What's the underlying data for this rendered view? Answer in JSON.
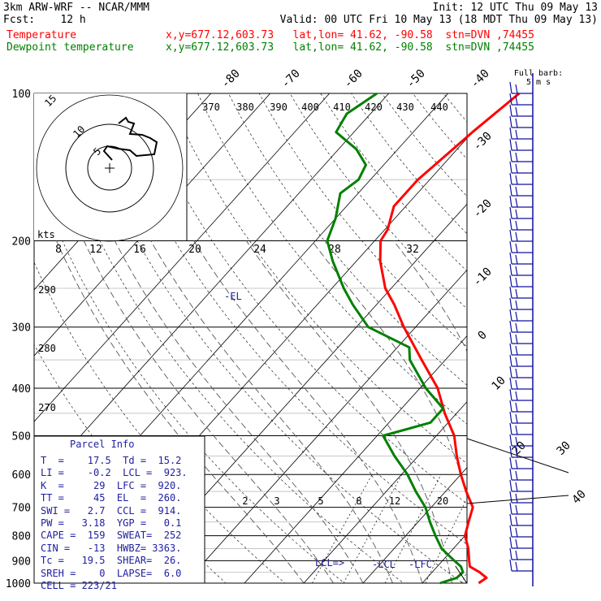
{
  "header": {
    "line1_left": "3km ARW-WRF -- NCAR/MMM",
    "line1_right": "Init: 12 UTC Thu 09 May 13",
    "line2_left": "Fcst:    12 h",
    "line2_right": "Valid: 00 UTC Fri 10 May 13 (18 MDT Thu 09 May 13)",
    "temp_label": "Temperature",
    "temp_info": "x,y=677.12,603.73   lat,lon= 41.62, -90.58  stn=DVN ,74455",
    "dew_label": "Dewpoint temperature",
    "dew_info": "x,y=677.12,603.73   lat,lon= 41.62, -90.58  stn=DVN ,74455"
  },
  "colors": {
    "temperature": "#ff0000",
    "dewpoint": "#008000",
    "parcel_text": "#2020a0",
    "wind": "#1010a0",
    "grid": "#000000"
  },
  "chart_data": {
    "type": "line",
    "diagram": "skew-T log-p",
    "pressure_levels": [
      100,
      200,
      300,
      400,
      500,
      600,
      700,
      800,
      900,
      1000
    ],
    "skewed_isotherm_labels": [
      -80,
      -70,
      -60,
      -50,
      -40,
      -30,
      -20,
      -10,
      0,
      10,
      20,
      30,
      40
    ],
    "potential_temp_labels": [
      370,
      380,
      390,
      400,
      410,
      420,
      430,
      440,
      290,
      280,
      270
    ],
    "mixing_ratio_labels": [
      2,
      3,
      5,
      8,
      12,
      20
    ],
    "hodograph": {
      "unit_label": "kts",
      "ring_labels": [
        5,
        10,
        15
      ],
      "speed_ticks": [
        8,
        12,
        16,
        20,
        24,
        28,
        32
      ]
    },
    "series": [
      {
        "name": "Temperature",
        "points": [
          [
            1000,
            19.5
          ],
          [
            975,
            20
          ],
          [
            950,
            18
          ],
          [
            925,
            15.5
          ],
          [
            900,
            14.5
          ],
          [
            850,
            12.5
          ],
          [
            800,
            10
          ],
          [
            750,
            8.5
          ],
          [
            700,
            7
          ],
          [
            650,
            3.5
          ],
          [
            600,
            0
          ],
          [
            550,
            -3.5
          ],
          [
            500,
            -7
          ],
          [
            450,
            -12
          ],
          [
            400,
            -17
          ],
          [
            350,
            -24
          ],
          [
            300,
            -32
          ],
          [
            270,
            -37
          ],
          [
            250,
            -41
          ],
          [
            220,
            -46
          ],
          [
            200,
            -49
          ],
          [
            190,
            -49.5
          ],
          [
            170,
            -52
          ],
          [
            150,
            -52
          ],
          [
            120,
            -50
          ],
          [
            100,
            -48
          ]
        ]
      },
      {
        "name": "Dewpoint temperature",
        "points": [
          [
            1000,
            13
          ],
          [
            975,
            15
          ],
          [
            950,
            15.2
          ],
          [
            925,
            14
          ],
          [
            900,
            12
          ],
          [
            850,
            8
          ],
          [
            800,
            5
          ],
          [
            750,
            2
          ],
          [
            700,
            -1
          ],
          [
            650,
            -5
          ],
          [
            600,
            -9
          ],
          [
            550,
            -14
          ],
          [
            500,
            -19
          ],
          [
            470,
            -13
          ],
          [
            440,
            -13
          ],
          [
            400,
            -19
          ],
          [
            350,
            -26
          ],
          [
            330,
            -28
          ],
          [
            300,
            -38
          ],
          [
            270,
            -44
          ],
          [
            250,
            -48
          ],
          [
            220,
            -54
          ],
          [
            200,
            -58
          ],
          [
            180,
            -60
          ],
          [
            160,
            -63
          ],
          [
            150,
            -62
          ],
          [
            140,
            -63
          ],
          [
            130,
            -67
          ],
          [
            120,
            -73
          ],
          [
            110,
            -74
          ],
          [
            100,
            -72
          ]
        ]
      }
    ],
    "annotations": [
      "-EL",
      "LCL=>",
      "-LCL",
      "-LFC"
    ],
    "wind_barb_label_1": "Full barb:",
    "wind_barb_label_2": "5 m s",
    "ylim": [
      1000,
      100
    ],
    "xlim": [
      -40,
      40
    ]
  },
  "parcel_info": {
    "title": "Parcel Info",
    "rows": [
      "T  =    17.5  Td =  15.2",
      "LI =    -0.2  LCL =  923.",
      "K  =     29  LFC =  920.",
      "TT =     45  EL  =  260.",
      "SWI =   2.7  CCL =  914.",
      "PW =   3.18  YGP =   0.1",
      "CAPE =  159  SWEAT=  252",
      "CIN =   -13  HWBZ= 3363.",
      "Tc =   19.5  SHEAR=  26.",
      "SREH =    0  LAPSE=  6.0",
      "CELL = 223/21"
    ]
  }
}
